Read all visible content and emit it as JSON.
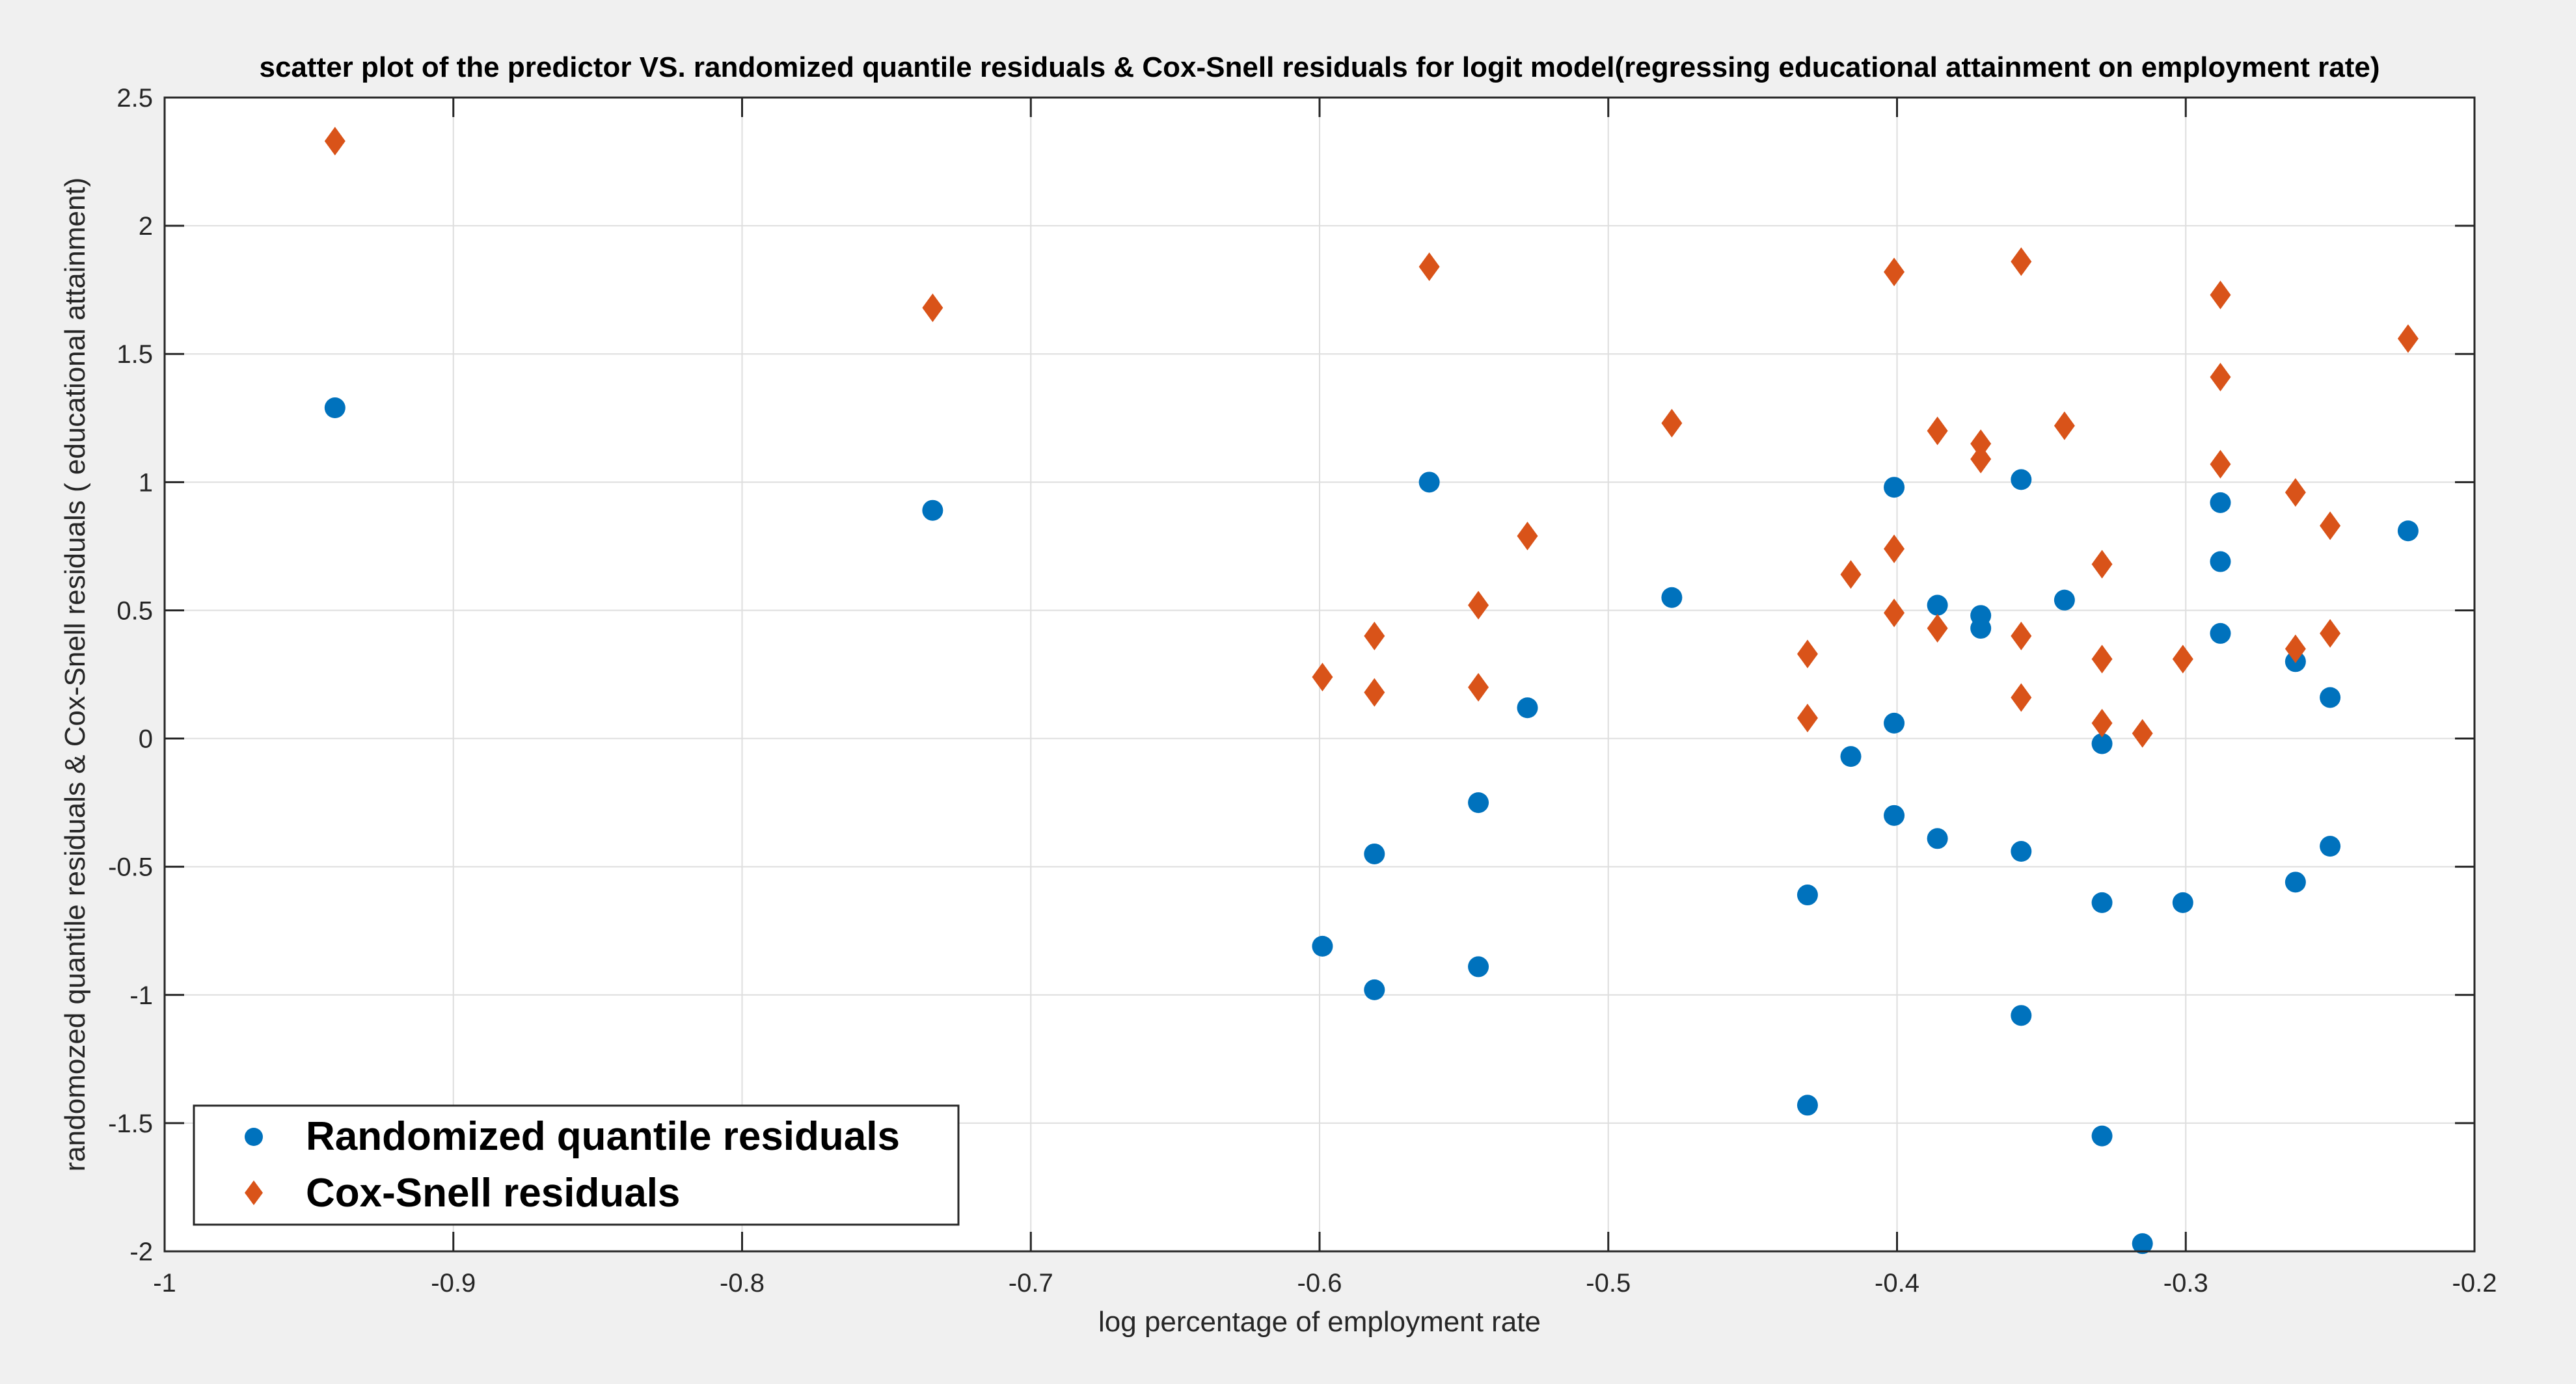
{
  "chart_data": {
    "type": "scatter",
    "title": "scatter plot of the predictor VS. randomized quantile residuals & Cox-Snell residuals for logit model(regressing educational attainment on employment rate)",
    "xlabel": "log percentage of employment rate",
    "ylabel": "randomozed quantile residuals & Cox-Snell residuals ( educational attainment)",
    "xlim": [
      -1,
      -0.2
    ],
    "ylim": [
      -2,
      2.5
    ],
    "xticks": [
      -1,
      -0.9,
      -0.8,
      -0.7,
      -0.6,
      -0.5,
      -0.4,
      -0.3,
      -0.2
    ],
    "xtick_labels": [
      "-1",
      "-0.9",
      "-0.8",
      "-0.7",
      "-0.6",
      "-0.5",
      "-0.4",
      "-0.3",
      "-0.2"
    ],
    "yticks": [
      -2,
      -1.5,
      -1,
      -0.5,
      0,
      0.5,
      1,
      1.5,
      2,
      2.5
    ],
    "ytick_labels": [
      "-2",
      "-1.5",
      "-1",
      "-0.5",
      "0",
      "0.5",
      "1",
      "1.5",
      "2",
      "2.5"
    ],
    "grid": true,
    "legend_position": "bottom-left",
    "colors": {
      "randomized": "#0072bd",
      "coxsnell": "#d95319",
      "grid": "#dedede",
      "axis": "#262626",
      "background": "#ffffff",
      "figure": "#f0f0f0"
    },
    "series": [
      {
        "name": "Randomized quantile residuals",
        "marker": "circle",
        "points": [
          [
            -0.941,
            1.29
          ],
          [
            -0.734,
            0.89
          ],
          [
            -0.599,
            -0.81
          ],
          [
            -0.581,
            -0.45
          ],
          [
            -0.581,
            -0.98
          ],
          [
            -0.562,
            1.0
          ],
          [
            -0.545,
            -0.25
          ],
          [
            -0.545,
            -0.89
          ],
          [
            -0.528,
            0.12
          ],
          [
            -0.478,
            0.55
          ],
          [
            -0.431,
            -0.61
          ],
          [
            -0.431,
            -1.43
          ],
          [
            -0.416,
            -0.07
          ],
          [
            -0.401,
            0.98
          ],
          [
            -0.401,
            0.06
          ],
          [
            -0.401,
            -0.3
          ],
          [
            -0.386,
            0.52
          ],
          [
            -0.386,
            -0.39
          ],
          [
            -0.371,
            0.48
          ],
          [
            -0.371,
            0.43
          ],
          [
            -0.357,
            1.01
          ],
          [
            -0.357,
            -0.44
          ],
          [
            -0.357,
            -1.08
          ],
          [
            -0.342,
            0.54
          ],
          [
            -0.329,
            -0.02
          ],
          [
            -0.329,
            -0.64
          ],
          [
            -0.329,
            -1.55
          ],
          [
            -0.315,
            -1.97
          ],
          [
            -0.301,
            -0.64
          ],
          [
            -0.288,
            0.92
          ],
          [
            -0.288,
            0.69
          ],
          [
            -0.288,
            0.41
          ],
          [
            -0.262,
            0.3
          ],
          [
            -0.262,
            -0.56
          ],
          [
            -0.25,
            0.16
          ],
          [
            -0.25,
            -0.42
          ],
          [
            -0.223,
            0.81
          ]
        ]
      },
      {
        "name": "Cox-Snell residuals",
        "marker": "diamond",
        "points": [
          [
            -0.941,
            2.33
          ],
          [
            -0.734,
            1.68
          ],
          [
            -0.599,
            0.24
          ],
          [
            -0.581,
            0.4
          ],
          [
            -0.581,
            0.18
          ],
          [
            -0.562,
            1.84
          ],
          [
            -0.545,
            0.52
          ],
          [
            -0.545,
            0.2
          ],
          [
            -0.528,
            0.79
          ],
          [
            -0.478,
            1.23
          ],
          [
            -0.431,
            0.33
          ],
          [
            -0.431,
            0.08
          ],
          [
            -0.416,
            0.64
          ],
          [
            -0.401,
            1.82
          ],
          [
            -0.401,
            0.74
          ],
          [
            -0.401,
            0.49
          ],
          [
            -0.386,
            1.2
          ],
          [
            -0.386,
            0.43
          ],
          [
            -0.371,
            1.15
          ],
          [
            -0.371,
            1.09
          ],
          [
            -0.357,
            1.86
          ],
          [
            -0.357,
            0.4
          ],
          [
            -0.357,
            0.16
          ],
          [
            -0.342,
            1.22
          ],
          [
            -0.329,
            0.68
          ],
          [
            -0.329,
            0.31
          ],
          [
            -0.329,
            0.06
          ],
          [
            -0.315,
            0.02
          ],
          [
            -0.301,
            0.31
          ],
          [
            -0.288,
            1.73
          ],
          [
            -0.288,
            1.41
          ],
          [
            -0.288,
            1.07
          ],
          [
            -0.262,
            0.96
          ],
          [
            -0.262,
            0.35
          ],
          [
            -0.25,
            0.83
          ],
          [
            -0.25,
            0.41
          ],
          [
            -0.223,
            1.56
          ]
        ]
      }
    ]
  }
}
